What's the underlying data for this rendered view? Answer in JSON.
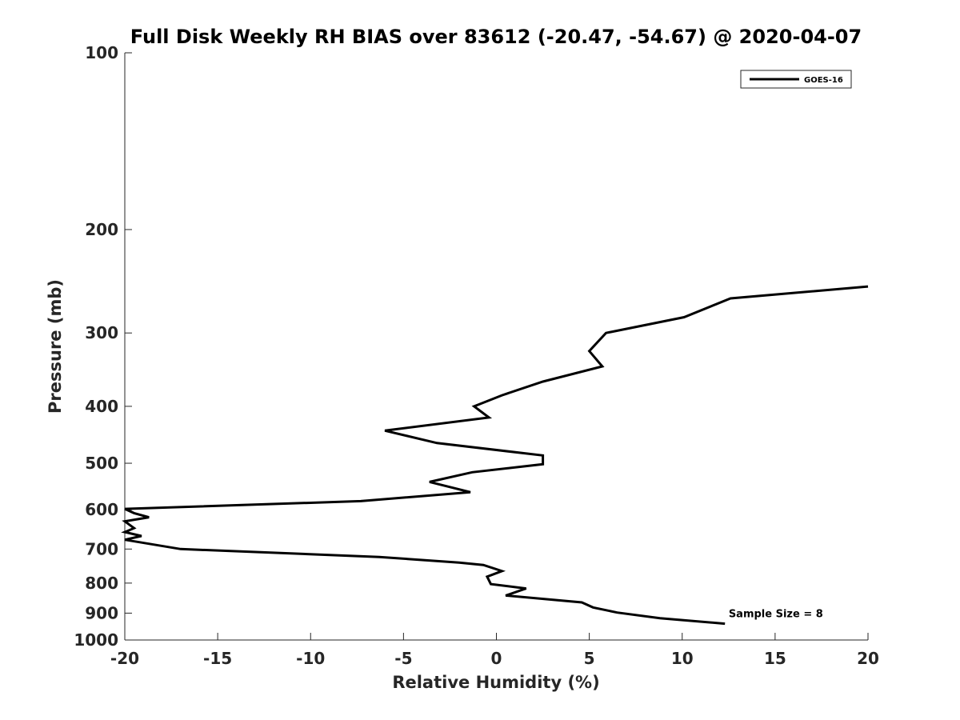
{
  "chart_data": {
    "type": "line",
    "title": "Full Disk Weekly RH BIAS over 83612 (-20.47, -54.67) @ 2020-04-07",
    "xlabel": "Relative Humidity (%)",
    "ylabel": "Pressure (mb)",
    "xlim": [
      -20,
      20
    ],
    "ylim": [
      100,
      1000
    ],
    "yscale": "log",
    "y_reversed": true,
    "xticks": [
      -20,
      -15,
      -10,
      -5,
      0,
      5,
      10,
      15,
      20
    ],
    "yticks": [
      100,
      200,
      300,
      400,
      500,
      600,
      700,
      800,
      900,
      1000
    ],
    "grid": false,
    "legend_position": "top-right",
    "series": [
      {
        "name": "GOES-16",
        "color": "#000000",
        "points": [
          [
            20.0,
            250
          ],
          [
            12.6,
            262
          ],
          [
            10.1,
            282
          ],
          [
            5.9,
            300
          ],
          [
            5.0,
            322
          ],
          [
            5.7,
            342
          ],
          [
            2.5,
            363
          ],
          [
            0.3,
            383
          ],
          [
            -1.2,
            400
          ],
          [
            -0.4,
            418
          ],
          [
            -6.0,
            440
          ],
          [
            -3.2,
            462
          ],
          [
            2.5,
            485
          ],
          [
            2.5,
            502
          ],
          [
            -1.3,
            518
          ],
          [
            -3.6,
            538
          ],
          [
            -1.4,
            560
          ],
          [
            -7.3,
            580
          ],
          [
            -20.0,
            598
          ],
          [
            -19.5,
            608
          ],
          [
            -18.7,
            618
          ],
          [
            -20.0,
            628
          ],
          [
            -19.5,
            645
          ],
          [
            -20.0,
            655
          ],
          [
            -19.1,
            665
          ],
          [
            -20.0,
            675
          ],
          [
            -17.0,
            700
          ],
          [
            -6.3,
            722
          ],
          [
            -2.0,
            738
          ],
          [
            -0.7,
            745
          ],
          [
            0.3,
            763
          ],
          [
            -0.5,
            780
          ],
          [
            -0.3,
            803
          ],
          [
            1.6,
            817
          ],
          [
            0.5,
            840
          ],
          [
            4.6,
            863
          ],
          [
            5.2,
            880
          ],
          [
            6.5,
            898
          ],
          [
            8.8,
            918
          ],
          [
            12.3,
            938
          ]
        ]
      }
    ],
    "annotations": [
      {
        "text": "Sample Size = 8",
        "x": 12.5,
        "y": 900
      }
    ]
  }
}
